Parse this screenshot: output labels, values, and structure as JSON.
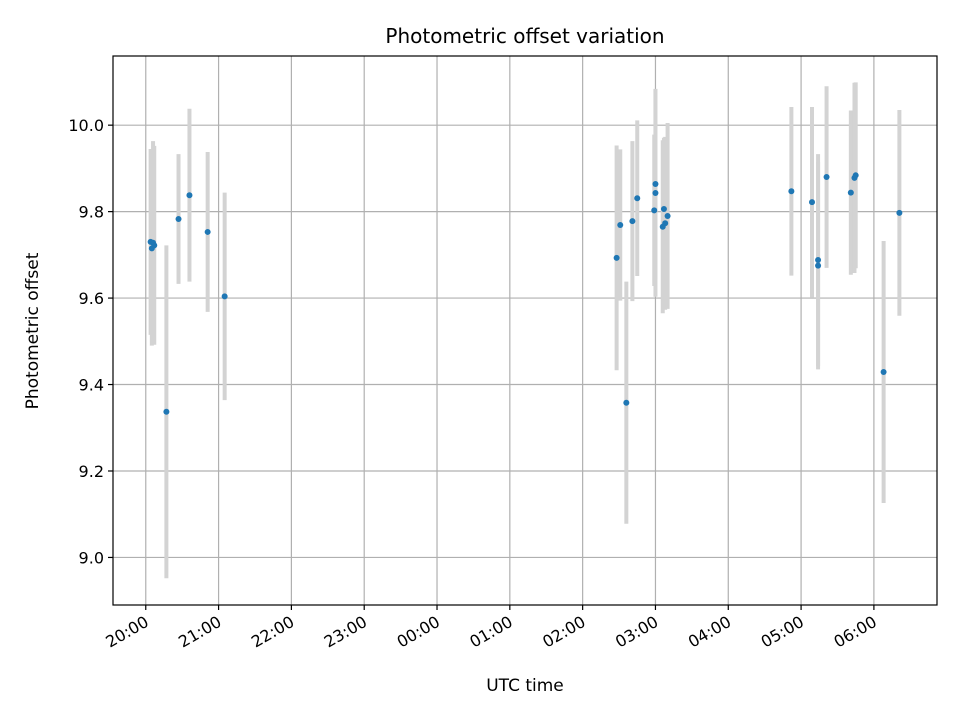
{
  "chart_data": {
    "type": "scatter",
    "title": "Photometric offset variation",
    "xlabel": "UTC time",
    "ylabel": "Photometric offset",
    "x_axis": "UTC time, hours after 20:00 (ticks hourly)",
    "x_ticks": [
      "20:00",
      "21:00",
      "22:00",
      "23:00",
      "00:00",
      "01:00",
      "02:00",
      "03:00",
      "04:00",
      "05:00",
      "06:00"
    ],
    "y_ticks": [
      "9.0",
      "9.2",
      "9.4",
      "9.6",
      "9.8",
      "10.0"
    ],
    "xlim": [
      "19:33",
      "06:52"
    ],
    "ylim": [
      8.89,
      10.16
    ],
    "grid": true,
    "marker_color": "#1f77b4",
    "errorbar_color": "#d3d3d3",
    "points": [
      {
        "time": "20:04",
        "y": 9.73,
        "err": 0.215
      },
      {
        "time": "20:05",
        "y": 9.715,
        "err": 0.225
      },
      {
        "time": "20:06",
        "y": 9.728,
        "err": 0.235
      },
      {
        "time": "20:07",
        "y": 9.722,
        "err": 0.23
      },
      {
        "time": "20:17",
        "y": 9.337,
        "err": 0.385
      },
      {
        "time": "20:27",
        "y": 9.783,
        "err": 0.15
      },
      {
        "time": "20:36",
        "y": 9.838,
        "err": 0.2
      },
      {
        "time": "20:51",
        "y": 9.753,
        "err": 0.185
      },
      {
        "time": "21:05",
        "y": 9.604,
        "err": 0.24
      },
      {
        "time": "02:28",
        "y": 9.693,
        "err": 0.26
      },
      {
        "time": "02:31",
        "y": 9.769,
        "err": 0.175
      },
      {
        "time": "02:36",
        "y": 9.358,
        "err": 0.28
      },
      {
        "time": "02:41",
        "y": 9.778,
        "err": 0.185
      },
      {
        "time": "02:45",
        "y": 9.831,
        "err": 0.18
      },
      {
        "time": "02:59",
        "y": 9.803,
        "err": 0.175
      },
      {
        "time": "03:00",
        "y": 9.843,
        "err": 0.24
      },
      {
        "time": "03:00",
        "y": 9.864,
        "err": 0.22
      },
      {
        "time": "03:06",
        "y": 9.765,
        "err": 0.2
      },
      {
        "time": "03:07",
        "y": 9.806,
        "err": 0.165
      },
      {
        "time": "03:08",
        "y": 9.773,
        "err": 0.2
      },
      {
        "time": "03:10",
        "y": 9.79,
        "err": 0.215
      },
      {
        "time": "04:52",
        "y": 9.847,
        "err": 0.195
      },
      {
        "time": "05:09",
        "y": 9.822,
        "err": 0.22
      },
      {
        "time": "05:14",
        "y": 9.688,
        "err": 0.245
      },
      {
        "time": "05:14",
        "y": 9.675,
        "err": 0.24
      },
      {
        "time": "05:21",
        "y": 9.88,
        "err": 0.21
      },
      {
        "time": "05:41",
        "y": 9.844,
        "err": 0.19
      },
      {
        "time": "05:44",
        "y": 9.878,
        "err": 0.22
      },
      {
        "time": "05:45",
        "y": 9.884,
        "err": 0.215
      },
      {
        "time": "06:08",
        "y": 9.429,
        "err": 0.303
      },
      {
        "time": "06:21",
        "y": 9.797,
        "err": 0.238
      }
    ]
  }
}
